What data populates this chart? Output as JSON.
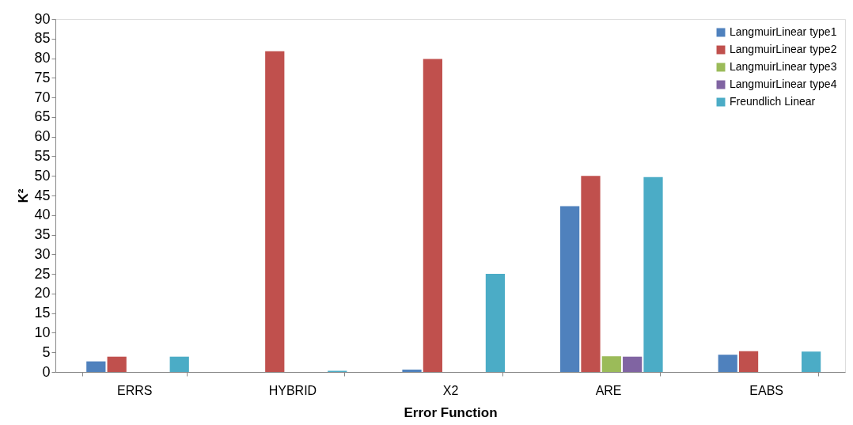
{
  "chart_data": {
    "type": "bar",
    "xlabel": "Error Function",
    "ylabel": "K²",
    "categories": [
      "ERRS",
      "HYBRID",
      "X2",
      "ARE",
      "EABS"
    ],
    "series": [
      {
        "name": "LangmuirLinear type1",
        "color": "#4f81bd",
        "values": [
          2.7,
          0,
          0.6,
          42.3,
          4.4
        ]
      },
      {
        "name": "LangmuirLinear type2",
        "color": "#c0504d",
        "values": [
          3.9,
          81.8,
          79.8,
          50.0,
          5.3
        ]
      },
      {
        "name": "LangmuirLinear type3",
        "color": "#9bbb59",
        "values": [
          0,
          0,
          0,
          4.0,
          0
        ]
      },
      {
        "name": "LangmuirLinear type4",
        "color": "#8064a2",
        "values": [
          0,
          0,
          0,
          3.9,
          0
        ]
      },
      {
        "name": "Freundlich Linear",
        "color": "#4bacc6",
        "values": [
          3.9,
          0.3,
          25.0,
          49.7,
          5.2
        ]
      }
    ],
    "ylim": [
      0,
      90
    ],
    "yticks": [
      0,
      5,
      10,
      15,
      20,
      25,
      30,
      35,
      40,
      45,
      50,
      55,
      60,
      65,
      70,
      75,
      80,
      85,
      90
    ],
    "grid": false,
    "legend": "top right"
  }
}
